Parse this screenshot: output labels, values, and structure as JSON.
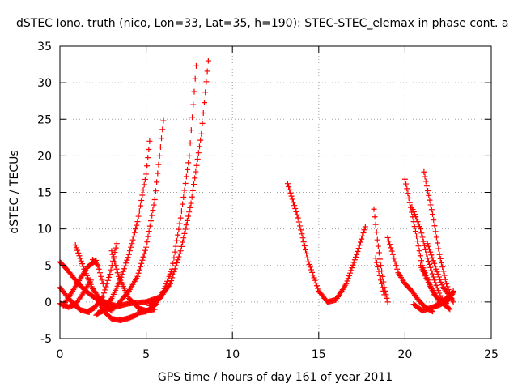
{
  "chart_data": {
    "type": "scatter",
    "title": "dSTEC Iono. truth (nico, Lon=33, Lat=35, h=190): STEC-STEC_elemax in phase cont. a",
    "xlabel": "GPS time / hours of day 161 of year 2011",
    "ylabel": "dSTEC  / TECUs",
    "xlim": [
      0,
      25
    ],
    "ylim": [
      -5,
      35
    ],
    "x_ticks": [
      "0",
      "5",
      "10",
      "15",
      "20",
      "25"
    ],
    "y_ticks": [
      "-5",
      "0",
      "5",
      "10",
      "15",
      "20",
      "25",
      "30",
      "35"
    ],
    "grid": true,
    "legend": "none",
    "marker": "plus",
    "color": "#ff0000",
    "series": [
      {
        "x": [
          0.0,
          0.5,
          1.0,
          1.5,
          2.0,
          2.6,
          3.2
        ],
        "y": [
          5.5,
          4.2,
          2.7,
          1.5,
          0.6,
          0.0,
          -0.5
        ]
      },
      {
        "x": [
          0.0,
          0.4,
          0.8,
          1.2,
          1.7
        ],
        "y": [
          2.0,
          0.8,
          -0.3,
          -1.1,
          -1.4
        ]
      },
      {
        "x": [
          0.0,
          0.5,
          0.9,
          1.3,
          1.8
        ],
        "y": [
          -0.2,
          -0.7,
          -0.3,
          1.0,
          3.0
        ]
      },
      {
        "x": [
          0.2,
          1.0,
          1.6,
          2.1
        ],
        "y": [
          -0.5,
          2.5,
          4.8,
          5.7
        ]
      },
      {
        "x": [
          0.9,
          1.4,
          1.9,
          2.5,
          3.0
        ],
        "y": [
          7.8,
          4.5,
          1.8,
          -0.2,
          -1.2
        ]
      },
      {
        "x": [
          1.6,
          2.0,
          2.5,
          2.9,
          3.3
        ],
        "y": [
          -1.3,
          -0.8,
          0.8,
          3.8,
          8.0
        ]
      },
      {
        "x": [
          1.9,
          2.2,
          2.5
        ],
        "y": [
          5.8,
          5.0,
          2.5
        ]
      },
      {
        "x": [
          2.2,
          3.0,
          4.0,
          5.0,
          5.6,
          5.9
        ],
        "y": [
          -1.5,
          -0.8,
          -0.2,
          0.0,
          0.5,
          0.8
        ]
      },
      {
        "x": [
          3.0,
          3.4,
          4.0,
          4.6,
          5.0,
          5.5
        ],
        "y": [
          7.0,
          3.5,
          0.5,
          -0.9,
          -1.2,
          -1.0
        ]
      },
      {
        "x": [
          2.2,
          2.6,
          3.0,
          3.5,
          4.0,
          4.5
        ],
        "y": [
          0.2,
          -1.4,
          -2.3,
          -2.5,
          -2.2,
          -1.7
        ]
      },
      {
        "x": [
          2.1,
          2.5,
          3.0,
          3.5,
          4.0,
          4.5,
          5.0,
          5.2
        ],
        "y": [
          -1.8,
          -1.0,
          0.5,
          3.0,
          6.5,
          11.0,
          17.5,
          22.0
        ]
      },
      {
        "x": [
          3.3,
          4.0,
          4.5,
          5.0,
          5.5,
          6.0
        ],
        "y": [
          -0.5,
          1.5,
          3.5,
          7.5,
          14.0,
          24.8
        ]
      },
      {
        "x": [
          4.5,
          5.0,
          5.5,
          6.0,
          6.5,
          7.0,
          7.5,
          7.9
        ],
        "y": [
          -1.5,
          -1.3,
          -0.5,
          1.5,
          4.5,
          11.5,
          20.0,
          32.3
        ]
      },
      {
        "x": [
          5.2,
          5.8,
          6.4,
          7.0,
          7.6,
          8.2,
          8.6
        ],
        "y": [
          -0.5,
          0.5,
          2.5,
          7.0,
          13.5,
          23.0,
          33.0
        ]
      },
      {
        "x": [
          13.2,
          13.8,
          14.4,
          15.0,
          15.5,
          16.0,
          16.6,
          17.2,
          17.7
        ],
        "y": [
          16.2,
          11.5,
          5.5,
          1.5,
          0.0,
          0.3,
          2.5,
          6.5,
          10.3
        ]
      },
      {
        "x": [
          18.2,
          18.4,
          18.6,
          18.8,
          19.0
        ],
        "y": [
          12.7,
          8.5,
          5.0,
          2.0,
          0.0
        ]
      },
      {
        "x": [
          18.3,
          18.6,
          18.8
        ],
        "y": [
          6.0,
          3.0,
          1.0
        ]
      },
      {
        "x": [
          19.0,
          19.3,
          19.6,
          20.0,
          20.4,
          20.8,
          21.2,
          21.6
        ],
        "y": [
          8.8,
          6.5,
          4.0,
          2.5,
          1.5,
          0.2,
          -0.8,
          -1.3
        ]
      },
      {
        "x": [
          20.0,
          20.5,
          21.0,
          21.5,
          22.0
        ],
        "y": [
          16.8,
          11.0,
          5.0,
          2.0,
          0.0
        ]
      },
      {
        "x": [
          20.4,
          20.9,
          21.3,
          21.7,
          22.1,
          22.4
        ],
        "y": [
          13.0,
          10.0,
          6.0,
          3.0,
          0.5,
          -0.2
        ]
      },
      {
        "x": [
          21.1,
          21.6,
          22.0,
          22.4,
          22.7
        ],
        "y": [
          17.8,
          12.0,
          6.5,
          2.5,
          0.5
        ]
      },
      {
        "x": [
          20.9,
          21.3,
          21.7,
          22.1,
          22.6
        ],
        "y": [
          5.0,
          3.0,
          1.0,
          0.0,
          -1.0
        ]
      },
      {
        "x": [
          21.3,
          21.8,
          22.2,
          22.6,
          22.8
        ],
        "y": [
          8.0,
          4.5,
          2.0,
          0.8,
          0.0
        ]
      },
      {
        "x": [
          20.5,
          21.0,
          21.5,
          22.0,
          22.5,
          22.8
        ],
        "y": [
          -0.3,
          -1.2,
          -0.8,
          -0.4,
          0.2,
          1.3
        ]
      },
      {
        "x": [
          21.8,
          22.1,
          22.4,
          22.7,
          22.8
        ],
        "y": [
          -0.5,
          0.0,
          0.5,
          1.0,
          1.5
        ]
      }
    ]
  }
}
